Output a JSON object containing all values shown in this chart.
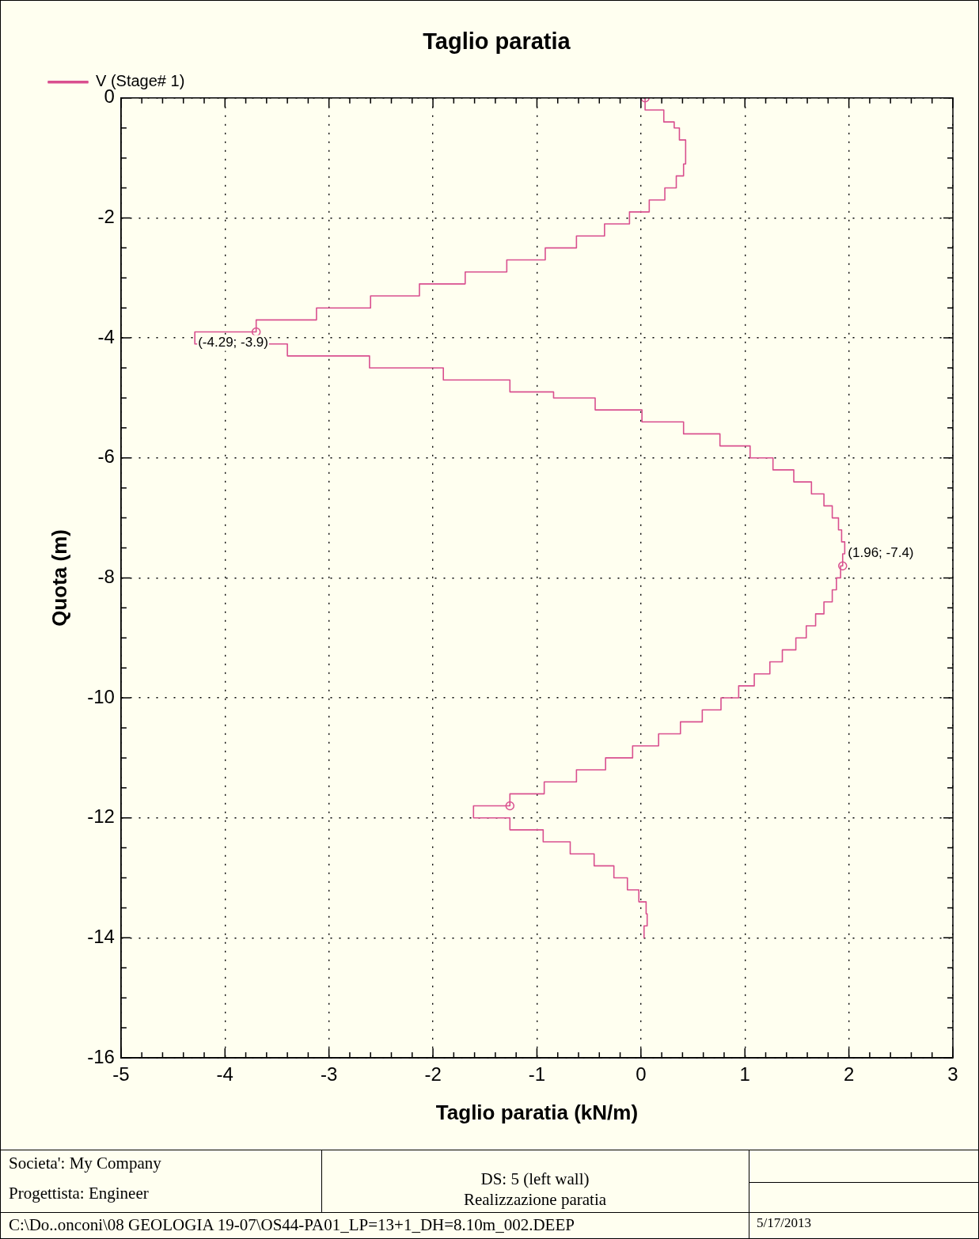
{
  "chart_data": {
    "type": "line",
    "title": "Taglio paratia",
    "xlabel": "Taglio paratia (kN/m)",
    "ylabel": "Quota (m)",
    "series": [
      {
        "name": "V (Stage# 1)",
        "color": "#d9508f",
        "marker": "none",
        "x": [
          0.04,
          0.04,
          0.22,
          0.22,
          0.32,
          0.32,
          0.37,
          0.37,
          0.43,
          0.43,
          0.41,
          0.41,
          0.34,
          0.34,
          0.23,
          0.23,
          0.08,
          0.08,
          -0.11,
          -0.11,
          -0.35,
          -0.35,
          -0.62,
          -0.62,
          -0.92,
          -0.92,
          -1.29,
          -1.29,
          -1.69,
          -1.69,
          -2.13,
          -2.13,
          -2.6,
          -2.6,
          -3.12,
          -3.12,
          -3.7,
          -3.7,
          -4.29,
          -4.29,
          -3.4,
          -3.4,
          -2.61,
          -2.61,
          -1.9,
          -1.9,
          -1.26,
          -1.26,
          -0.84,
          -0.84,
          -0.44,
          -0.44,
          0.01,
          0.01,
          0.41,
          0.41,
          0.76,
          0.76,
          1.05,
          1.05,
          1.27,
          1.27,
          1.47,
          1.47,
          1.64,
          1.64,
          1.76,
          1.76,
          1.84,
          1.84,
          1.9,
          1.9,
          1.93,
          1.93,
          1.96,
          1.96,
          1.94,
          1.94,
          1.92,
          1.92,
          1.88,
          1.88,
          1.84,
          1.84,
          1.76,
          1.76,
          1.68,
          1.68,
          1.59,
          1.59,
          1.49,
          1.49,
          1.36,
          1.36,
          1.24,
          1.24,
          1.09,
          1.09,
          0.94,
          0.94,
          0.77,
          0.77,
          0.59,
          0.59,
          0.38,
          0.38,
          0.17,
          0.17,
          -0.08,
          -0.08,
          -0.34,
          -0.34,
          -0.62,
          -0.62,
          -0.93,
          -0.93,
          -1.26,
          -1.26,
          -1.61,
          -1.61,
          -1.26,
          -1.26,
          -0.94,
          -0.94,
          -0.68,
          -0.68,
          -0.45,
          -0.45,
          -0.26,
          -0.26,
          -0.13,
          -0.13,
          -0.02,
          -0.02,
          0.05,
          0.05,
          0.06,
          0.06,
          0.03,
          0.03
        ],
        "values": [
          0,
          -0.2,
          -0.2,
          -0.4,
          -0.4,
          -0.5,
          -0.5,
          -0.7,
          -0.7,
          -1.1,
          -1.1,
          -1.3,
          -1.3,
          -1.5,
          -1.5,
          -1.7,
          -1.7,
          -1.9,
          -1.9,
          -2.1,
          -2.1,
          -2.3,
          -2.3,
          -2.5,
          -2.5,
          -2.7,
          -2.7,
          -2.9,
          -2.9,
          -3.1,
          -3.1,
          -3.3,
          -3.3,
          -3.5,
          -3.5,
          -3.7,
          -3.7,
          -3.9,
          -3.9,
          -4.1,
          -4.1,
          -4.3,
          -4.3,
          -4.5,
          -4.5,
          -4.7,
          -4.7,
          -4.9,
          -4.9,
          -5.0,
          -5.0,
          -5.2,
          -5.2,
          -5.4,
          -5.4,
          -5.6,
          -5.6,
          -5.8,
          -5.8,
          -6.0,
          -6.0,
          -6.2,
          -6.2,
          -6.4,
          -6.4,
          -6.6,
          -6.6,
          -6.8,
          -6.8,
          -7.0,
          -7.0,
          -7.2,
          -7.2,
          -7.4,
          -7.4,
          -7.6,
          -7.6,
          -7.8,
          -7.8,
          -8.0,
          -8.0,
          -8.2,
          -8.2,
          -8.4,
          -8.4,
          -8.6,
          -8.6,
          -8.8,
          -8.8,
          -9.0,
          -9.0,
          -9.2,
          -9.2,
          -9.4,
          -9.4,
          -9.6,
          -9.6,
          -9.8,
          -9.8,
          -10.0,
          -10.0,
          -10.2,
          -10.2,
          -10.4,
          -10.4,
          -10.6,
          -10.6,
          -10.8,
          -10.8,
          -11.0,
          -11.0,
          -11.2,
          -11.2,
          -11.4,
          -11.4,
          -11.6,
          -11.6,
          -11.8,
          -11.8,
          -12.0,
          -12.0,
          -12.2,
          -12.2,
          -12.4,
          -12.4,
          -12.6,
          -12.6,
          -12.8,
          -12.8,
          -13.0,
          -13.0,
          -13.2,
          -13.2,
          -13.4,
          -13.4,
          -13.6,
          -13.6,
          -13.8,
          -13.8,
          -14.0
        ]
      },
      {
        "type": "scatter",
        "color": "#d9508f",
        "marker": "circle",
        "x": [
          0.04,
          -3.7,
          1.94,
          -1.26
        ],
        "values": [
          0,
          -3.9,
          -7.8,
          -11.8
        ]
      }
    ],
    "xlim": [
      -5,
      3
    ],
    "xticks": [
      -5,
      -4,
      -3,
      -2,
      -1,
      0,
      1,
      2,
      3
    ],
    "ylim": [
      -16,
      0
    ],
    "yticks": [
      0,
      -2,
      -4,
      -6,
      -8,
      -10,
      -12,
      -14,
      -16
    ],
    "grid": true,
    "legend": "top left",
    "line_style": "solid",
    "annotations": [
      {
        "text": "(-4.29; -3.9)",
        "x": -4.29,
        "y": -3.9
      },
      {
        "text": "(1.96; -7.4)",
        "x": 1.96,
        "y": -7.4
      },
      "Societa': My Company",
      "Progettista: Engineer",
      "DS: 5 (left wall)",
      "Realizzazione paratia",
      "C:\\Do..onconi\\08 GEOLOGIA 19-07\\OS44-PA01_LP=13+1_DH=8.10m_002.DEEP",
      "5/17/2013"
    ]
  }
}
